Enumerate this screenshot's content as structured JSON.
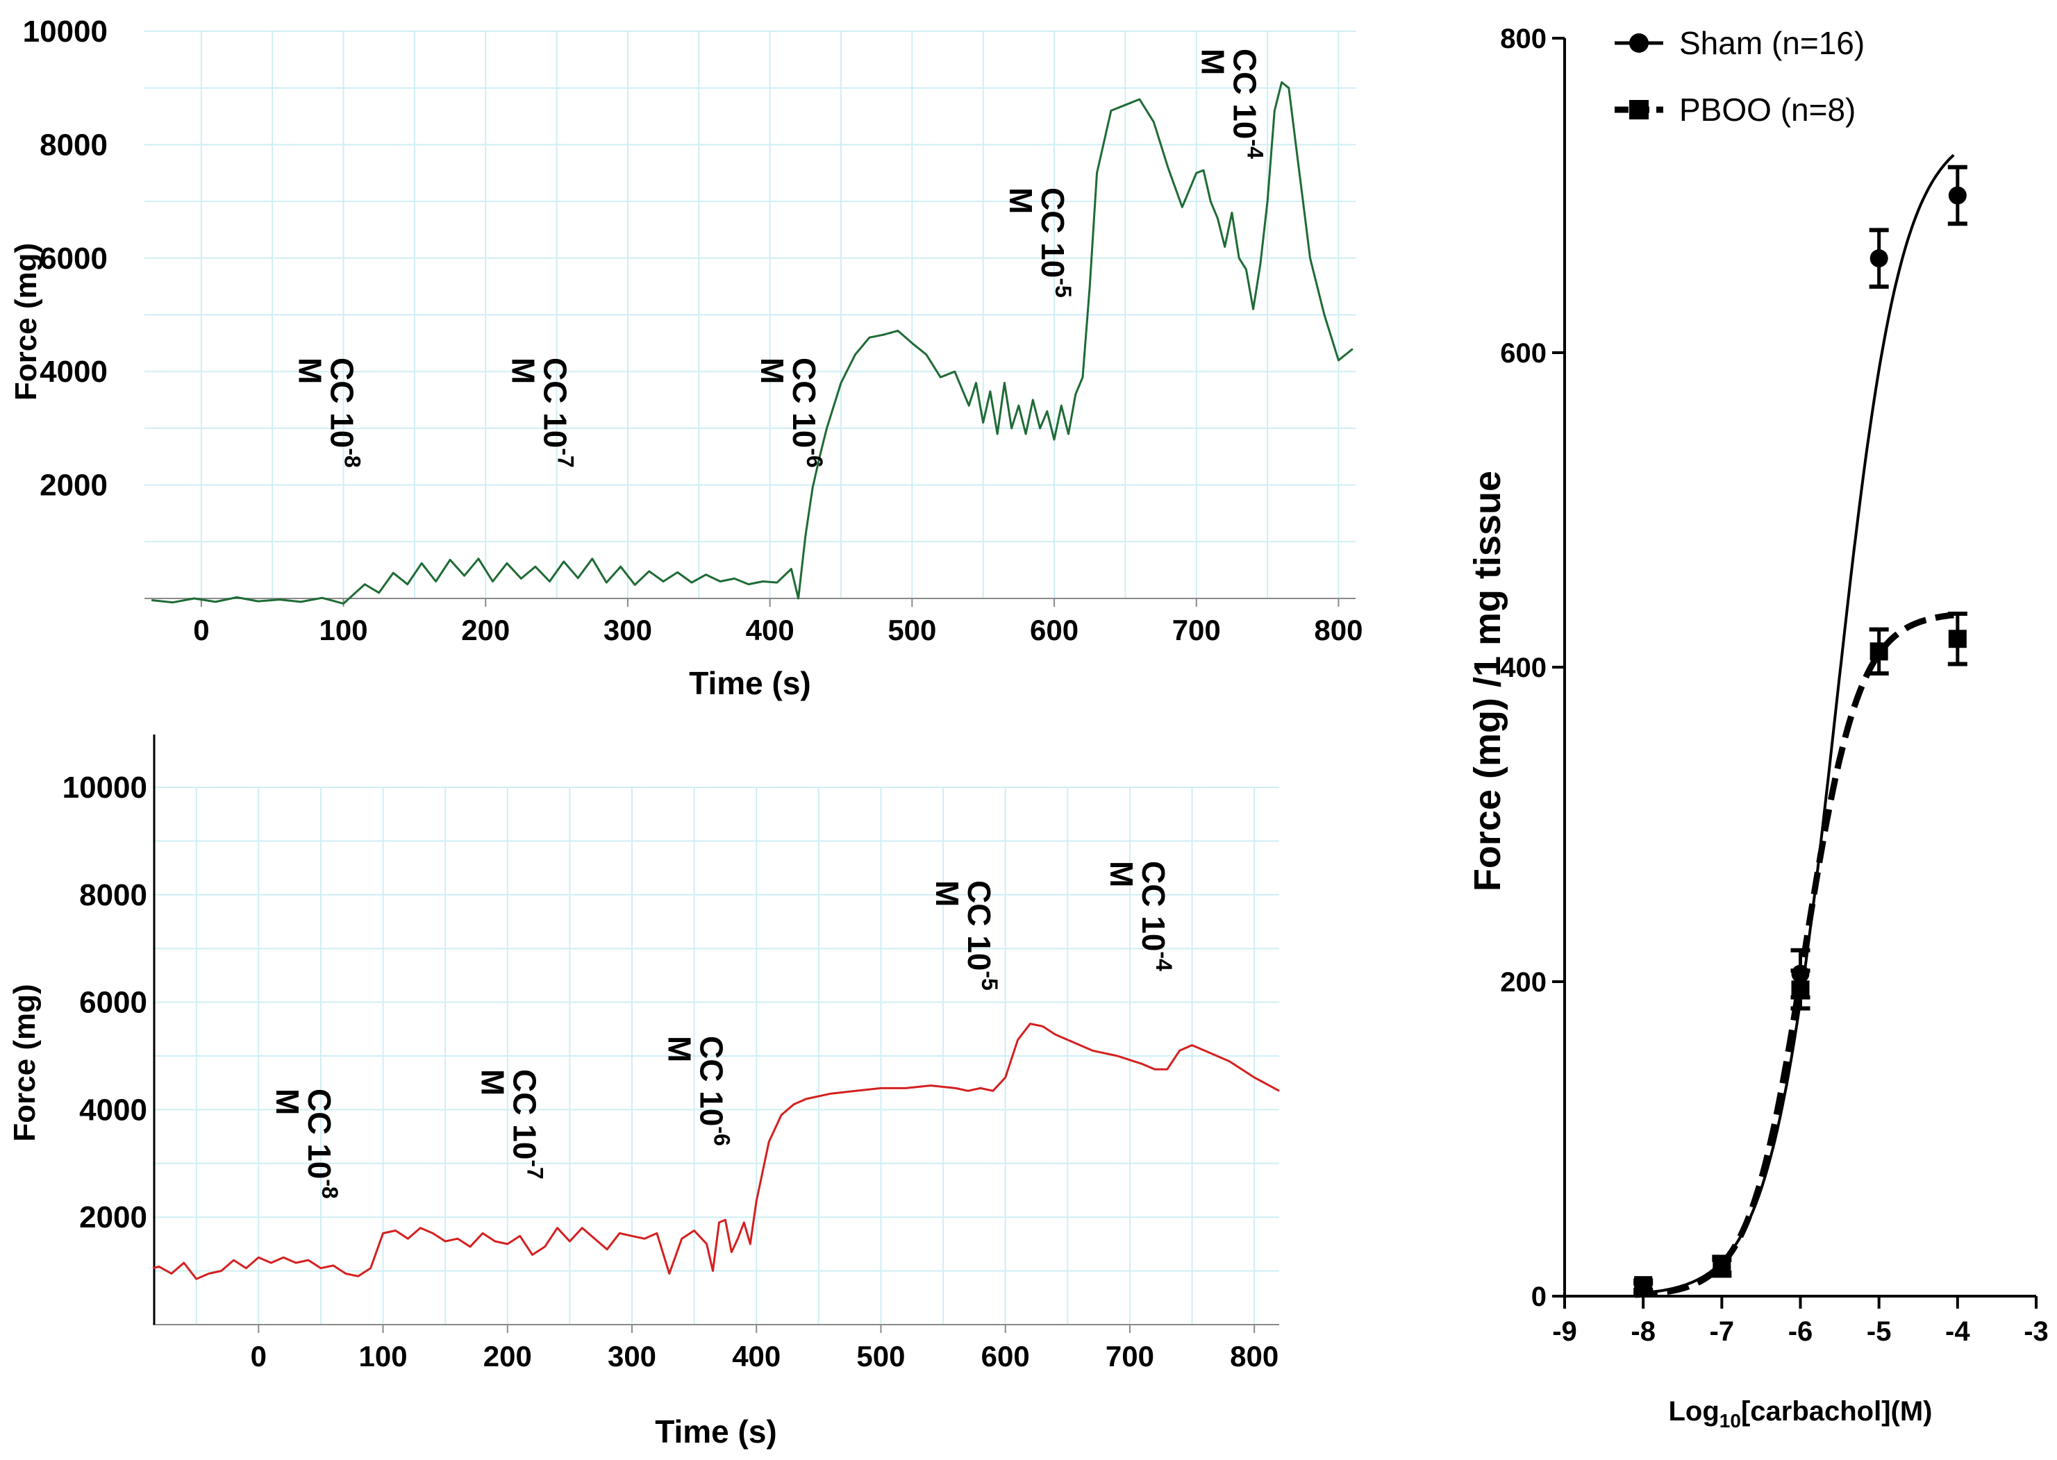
{
  "chart_data": [
    {
      "type": "line",
      "xlabel": "Time (s)",
      "ylabel": "Force (mg)",
      "xticks": [
        0,
        100,
        200,
        300,
        400,
        500,
        600,
        700,
        800
      ],
      "yticks": [
        2000,
        4000,
        6000,
        8000,
        10000
      ],
      "xlim": [
        -40,
        812
      ],
      "ylim": [
        0,
        10000
      ],
      "grid": true,
      "color": "#1e6b35",
      "series": [
        {
          "x": [
            -35,
            -20,
            -5,
            10,
            25,
            40,
            55,
            70,
            85,
            100,
            115,
            125,
            135,
            145,
            155,
            165,
            175,
            185,
            195,
            205,
            215,
            225,
            235,
            245,
            255,
            265,
            275,
            285,
            295,
            305,
            315,
            325,
            335,
            345,
            355,
            365,
            375,
            385,
            395,
            405,
            415,
            420,
            425,
            430,
            435,
            440,
            450,
            460,
            470,
            480,
            490,
            500,
            510,
            520,
            530,
            540,
            545,
            550,
            555,
            560,
            565,
            570,
            575,
            580,
            585,
            590,
            595,
            600,
            605,
            610,
            615,
            620,
            625,
            630,
            640,
            650,
            660,
            670,
            680,
            690,
            695,
            700,
            705,
            710,
            715,
            720,
            725,
            730,
            735,
            740,
            745,
            750,
            755,
            760,
            765,
            770,
            775,
            780,
            790,
            800,
            810
          ],
          "y": [
            -30,
            -70,
            0,
            -60,
            20,
            -50,
            -20,
            -60,
            10,
            -90,
            250,
            100,
            450,
            250,
            620,
            300,
            680,
            400,
            700,
            300,
            620,
            350,
            560,
            300,
            650,
            360,
            700,
            280,
            560,
            240,
            480,
            300,
            460,
            280,
            420,
            300,
            350,
            250,
            300,
            280,
            520,
            0,
            1100,
            1950,
            2500,
            3000,
            3800,
            4300,
            4600,
            4650,
            4720,
            4500,
            4300,
            3900,
            4000,
            3400,
            3800,
            3100,
            3650,
            2900,
            3800,
            3000,
            3400,
            2900,
            3500,
            3000,
            3300,
            2800,
            3400,
            2900,
            3600,
            3900,
            5500,
            7500,
            8600,
            8700,
            8800,
            8400,
            7600,
            6900,
            7200,
            7500,
            7550,
            7000,
            6700,
            6200,
            6800,
            6000,
            5800,
            5100,
            5900,
            7000,
            8600,
            9100,
            9000,
            8000,
            7000,
            6000,
            5000,
            4200,
            4400
          ]
        }
      ],
      "annotations": [
        {
          "base": "CC 10",
          "exp": "-8",
          "unit": "M",
          "x": 100
        },
        {
          "base": "CC 10",
          "exp": "-7",
          "unit": "M",
          "x": 250
        },
        {
          "base": "CC 10",
          "exp": "-6",
          "unit": "M",
          "x": 425
        },
        {
          "base": "CC 10",
          "exp": "-5",
          "unit": "M",
          "x": 600
        },
        {
          "base": "CC 10",
          "exp": "-4",
          "unit": "M",
          "x": 735
        }
      ]
    },
    {
      "type": "line",
      "xlabel": "Time (s)",
      "ylabel": "Force (mg)",
      "xticks": [
        0,
        100,
        200,
        300,
        400,
        500,
        600,
        700,
        800
      ],
      "yticks": [
        2000,
        4000,
        6000,
        8000,
        10000
      ],
      "xlim": [
        -85,
        820
      ],
      "ylim": [
        0,
        10000
      ],
      "grid": true,
      "color": "#d42020",
      "series": [
        {
          "x": [
            -85,
            -80,
            -70,
            -60,
            -50,
            -40,
            -30,
            -20,
            -10,
            0,
            10,
            20,
            30,
            40,
            50,
            60,
            70,
            80,
            90,
            100,
            110,
            120,
            130,
            140,
            150,
            160,
            170,
            180,
            190,
            200,
            210,
            220,
            230,
            240,
            250,
            260,
            270,
            280,
            290,
            300,
            310,
            320,
            330,
            340,
            350,
            360,
            365,
            370,
            375,
            380,
            385,
            390,
            395,
            400,
            410,
            420,
            430,
            440,
            460,
            480,
            500,
            520,
            540,
            560,
            570,
            580,
            590,
            600,
            610,
            620,
            630,
            640,
            650,
            670,
            690,
            710,
            720,
            730,
            740,
            750,
            760,
            780,
            800,
            820
          ],
          "y": [
            1050,
            1080,
            950,
            1150,
            850,
            950,
            1000,
            1200,
            1050,
            1250,
            1150,
            1250,
            1150,
            1200,
            1050,
            1100,
            950,
            900,
            1050,
            1700,
            1750,
            1600,
            1800,
            1700,
            1550,
            1600,
            1450,
            1700,
            1550,
            1500,
            1650,
            1300,
            1450,
            1800,
            1550,
            1800,
            1600,
            1400,
            1700,
            1650,
            1600,
            1700,
            950,
            1600,
            1750,
            1500,
            1000,
            1900,
            1950,
            1350,
            1600,
            1900,
            1500,
            2300,
            3400,
            3900,
            4100,
            4200,
            4300,
            4350,
            4400,
            4400,
            4450,
            4400,
            4350,
            4400,
            4350,
            4600,
            5300,
            5600,
            5550,
            5400,
            5300,
            5100,
            5000,
            4850,
            4750,
            4750,
            5100,
            5200,
            5100,
            4900,
            4600,
            4350
          ]
        }
      ],
      "annotations": [
        {
          "base": "CC 10",
          "exp": "-8",
          "unit": "M",
          "x": 50
        },
        {
          "base": "CC 10",
          "exp": "-7",
          "unit": "M",
          "x": 215
        },
        {
          "base": "CC 10",
          "exp": "-6",
          "unit": "M",
          "x": 365
        },
        {
          "base": "CC 10",
          "exp": "-5",
          "unit": "M",
          "x": 580
        },
        {
          "base": "CC 10",
          "exp": "-4",
          "unit": "M",
          "x": 720
        }
      ]
    },
    {
      "type": "scatter",
      "xlabel": "Log10[carbachol](M)",
      "xlabel_base": "Log",
      "xlabel_sub": "10",
      "xlabel_rest": "[carbachol](M)",
      "ylabel": "Force (mg) /1 mg tissue",
      "xticks": [
        -9,
        -8,
        -7,
        -6,
        -5,
        -4,
        -3
      ],
      "yticks": [
        0,
        200,
        400,
        600,
        800
      ],
      "xlim": [
        -9,
        -3
      ],
      "ylim": [
        0,
        800
      ],
      "grid": false,
      "legend_position": "top-left",
      "series": [
        {
          "name": "Sham (n=16)",
          "marker": "circle",
          "line": "solid",
          "x": [
            -8,
            -7,
            -6,
            -5,
            -4
          ],
          "y": [
            5,
            18,
            205,
            660,
            700
          ],
          "err": [
            3,
            5,
            15,
            18,
            18
          ],
          "fit": {
            "bottom": 0,
            "top": 745,
            "logEC50": -5.55,
            "hill": 1.05
          }
        },
        {
          "name": "PBOO (n=8)",
          "marker": "square",
          "line": "dashed",
          "x": [
            -8,
            -7,
            -6,
            -5,
            -4
          ],
          "y": [
            7,
            20,
            195,
            410,
            418
          ],
          "err": [
            3,
            5,
            12,
            14,
            16
          ],
          "fit": {
            "bottom": 0,
            "top": 435,
            "logEC50": -5.95,
            "hill": 1.25
          }
        }
      ]
    }
  ]
}
